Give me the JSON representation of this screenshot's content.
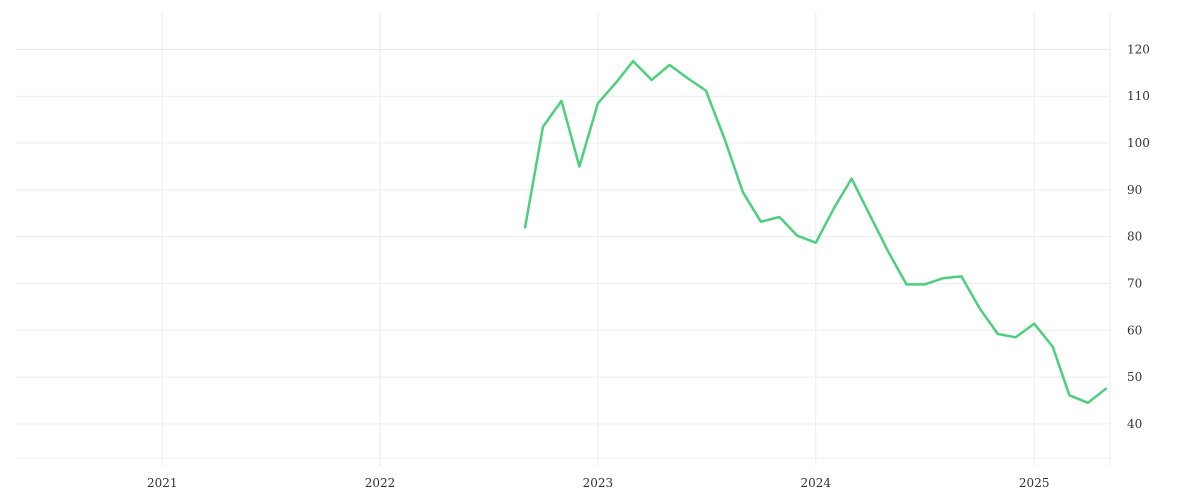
{
  "chart_data": {
    "type": "line",
    "x_axis": {
      "type": "time",
      "range": [
        "2020-05-01",
        "2025-05-08"
      ],
      "tick_labels": [
        "2021",
        "2022",
        "2023",
        "2024",
        "2025"
      ],
      "position": "bottom"
    },
    "y_axis": {
      "range": [
        31,
        128
      ],
      "ticks": [
        40,
        50,
        60,
        70,
        80,
        90,
        100,
        110,
        120
      ],
      "position": "right"
    },
    "grid": true,
    "legend": false,
    "series": [
      {
        "color": "#4cd07d",
        "points": [
          {
            "x": "2022-09-01",
            "y": 82
          },
          {
            "x": "2022-10-01",
            "y": 103.5
          },
          {
            "x": "2022-11-01",
            "y": 109
          },
          {
            "x": "2022-12-01",
            "y": 95
          },
          {
            "x": "2023-01-01",
            "y": 108.5
          },
          {
            "x": "2023-02-01",
            "y": 113
          },
          {
            "x": "2023-03-01",
            "y": 117.5
          },
          {
            "x": "2023-04-01",
            "y": 113.5
          },
          {
            "x": "2023-05-01",
            "y": 116.7
          },
          {
            "x": "2023-06-01",
            "y": 113.8
          },
          {
            "x": "2023-07-01",
            "y": 111.2
          },
          {
            "x": "2023-08-01",
            "y": 101
          },
          {
            "x": "2023-09-01",
            "y": 89.5
          },
          {
            "x": "2023-10-01",
            "y": 83.2
          },
          {
            "x": "2023-11-01",
            "y": 84.2
          },
          {
            "x": "2023-12-01",
            "y": 80.2
          },
          {
            "x": "2024-01-01",
            "y": 78.7
          },
          {
            "x": "2024-02-01",
            "y": 86.2
          },
          {
            "x": "2024-03-01",
            "y": 92.4
          },
          {
            "x": "2024-04-01",
            "y": 84.5
          },
          {
            "x": "2024-05-01",
            "y": 76.9
          },
          {
            "x": "2024-06-01",
            "y": 69.8
          },
          {
            "x": "2024-07-01",
            "y": 69.8
          },
          {
            "x": "2024-08-01",
            "y": 71.1
          },
          {
            "x": "2024-09-01",
            "y": 71.5
          },
          {
            "x": "2024-10-01",
            "y": 64.8
          },
          {
            "x": "2024-11-01",
            "y": 59.2
          },
          {
            "x": "2024-12-01",
            "y": 58.5
          },
          {
            "x": "2025-01-01",
            "y": 61.4
          },
          {
            "x": "2025-02-01",
            "y": 56.5
          },
          {
            "x": "2025-03-01",
            "y": 46.1
          },
          {
            "x": "2025-04-01",
            "y": 44.5
          },
          {
            "x": "2025-05-01",
            "y": 47.5
          }
        ]
      }
    ]
  }
}
